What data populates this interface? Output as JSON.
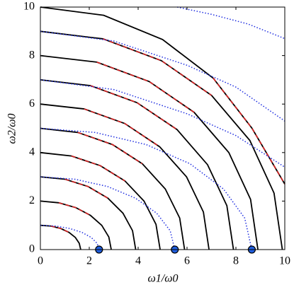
{
  "chart_data": {
    "type": "line",
    "xlabel": "ω1/ω0",
    "ylabel": "ω2/ω0",
    "xlim": [
      0,
      10
    ],
    "ylim": [
      0,
      10
    ],
    "xticks": [
      0,
      2,
      4,
      6,
      8,
      10
    ],
    "yticks": [
      0,
      2,
      4,
      6,
      8,
      10
    ],
    "series": [
      {
        "color": "#000000",
        "style": "solid",
        "x": [
          0,
          0.43,
          0.83,
          1.17,
          1.43,
          1.59,
          1.65,
          null,
          0,
          0.75,
          1.45,
          2.05,
          2.51,
          2.8,
          2.9,
          null,
          0,
          1.01,
          1.95,
          2.76,
          3.38,
          3.77,
          3.9,
          null,
          0,
          1.27,
          2.45,
          3.46,
          4.24,
          4.73,
          4.9,
          null,
          0,
          1.53,
          2.95,
          4.17,
          5.11,
          5.7,
          5.9,
          null,
          0,
          1.79,
          3.45,
          4.88,
          5.98,
          6.67,
          6.9,
          null,
          0,
          2.05,
          3.95,
          5.59,
          6.84,
          7.63,
          7.9,
          null,
          0,
          2.31,
          4.45,
          6.29,
          7.71,
          8.6,
          8.9,
          null,
          0,
          2.56,
          4.95,
          7,
          8.57,
          9.56,
          9.9,
          null,
          0,
          2.59,
          5,
          7.07,
          8.66,
          10
        ],
        "values": [
          1,
          0.97,
          0.87,
          0.71,
          0.5,
          0.26,
          0,
          null,
          2,
          1.93,
          1.73,
          1.41,
          1,
          0.52,
          0,
          null,
          3,
          2.9,
          2.6,
          2.12,
          1.5,
          0.78,
          0,
          null,
          4,
          3.86,
          3.46,
          2.83,
          2,
          1.04,
          0,
          null,
          5,
          4.83,
          4.33,
          3.54,
          2.5,
          1.3,
          0,
          null,
          6,
          5.8,
          5.2,
          4.24,
          3,
          1.55,
          0,
          null,
          7,
          6.76,
          6.06,
          4.95,
          3.5,
          1.81,
          0,
          null,
          8,
          7.73,
          6.93,
          5.66,
          4,
          2.07,
          0,
          null,
          9,
          8.69,
          7.79,
          6.36,
          4.5,
          2.33,
          0,
          null,
          10,
          9.66,
          8.66,
          7.07,
          5,
          2.7
        ]
      },
      {
        "color": "#e02020",
        "style": "dashed",
        "x": [
          0.43,
          0.83,
          1.17,
          null,
          0.75,
          1.45,
          2.05,
          null,
          1.01,
          1.95,
          2.76,
          null,
          1.27,
          2.45,
          3.46,
          null,
          1.53,
          2.95,
          4.17,
          null,
          1.79,
          3.45,
          4.88,
          null,
          2.05,
          3.95,
          5.59,
          null,
          2.31,
          4.45,
          6.29,
          null,
          2.56,
          4.95,
          7,
          null,
          7.07,
          8.66,
          10
        ],
        "values": [
          0.97,
          0.87,
          0.71,
          null,
          1.93,
          1.73,
          1.41,
          null,
          2.9,
          2.6,
          2.12,
          null,
          3.86,
          3.46,
          2.83,
          null,
          4.83,
          4.33,
          3.54,
          null,
          5.8,
          5.2,
          4.24,
          null,
          6.76,
          6.06,
          4.95,
          null,
          7.73,
          6.93,
          5.66,
          null,
          8.69,
          7.79,
          6.36,
          null,
          7.07,
          5,
          2.7
        ]
      },
      {
        "color": "#1f2ee0",
        "style": "dotted",
        "x": [
          0,
          0.62,
          1.2,
          1.7,
          2.08,
          2.32,
          2.4,
          null,
          0,
          1.42,
          2.75,
          3.89,
          4.76,
          5.31,
          5.5,
          null,
          0,
          2.24,
          4.33,
          6.12,
          7.49,
          8.36,
          8.65,
          null,
          0,
          3,
          6,
          8,
          10,
          null,
          0,
          3,
          6,
          8,
          10,
          null,
          5.6,
          7,
          8.5,
          10
        ],
        "values": [
          1,
          0.97,
          0.87,
          0.71,
          0.5,
          0.26,
          0,
          null,
          3,
          2.9,
          2.6,
          2.12,
          1.5,
          0.78,
          0,
          null,
          5,
          4.83,
          4.33,
          3.54,
          2.5,
          1.3,
          0,
          null,
          7,
          6.6,
          5.6,
          4.7,
          3.4,
          null,
          9,
          8.6,
          7.6,
          6.7,
          5.3,
          null,
          10,
          9.7,
          9.3,
          8.7
        ]
      },
      {
        "color": "#1f5ee0",
        "style": "markers",
        "x": [
          2.4,
          5.5,
          8.65
        ],
        "values": [
          0,
          0,
          0
        ]
      }
    ]
  }
}
